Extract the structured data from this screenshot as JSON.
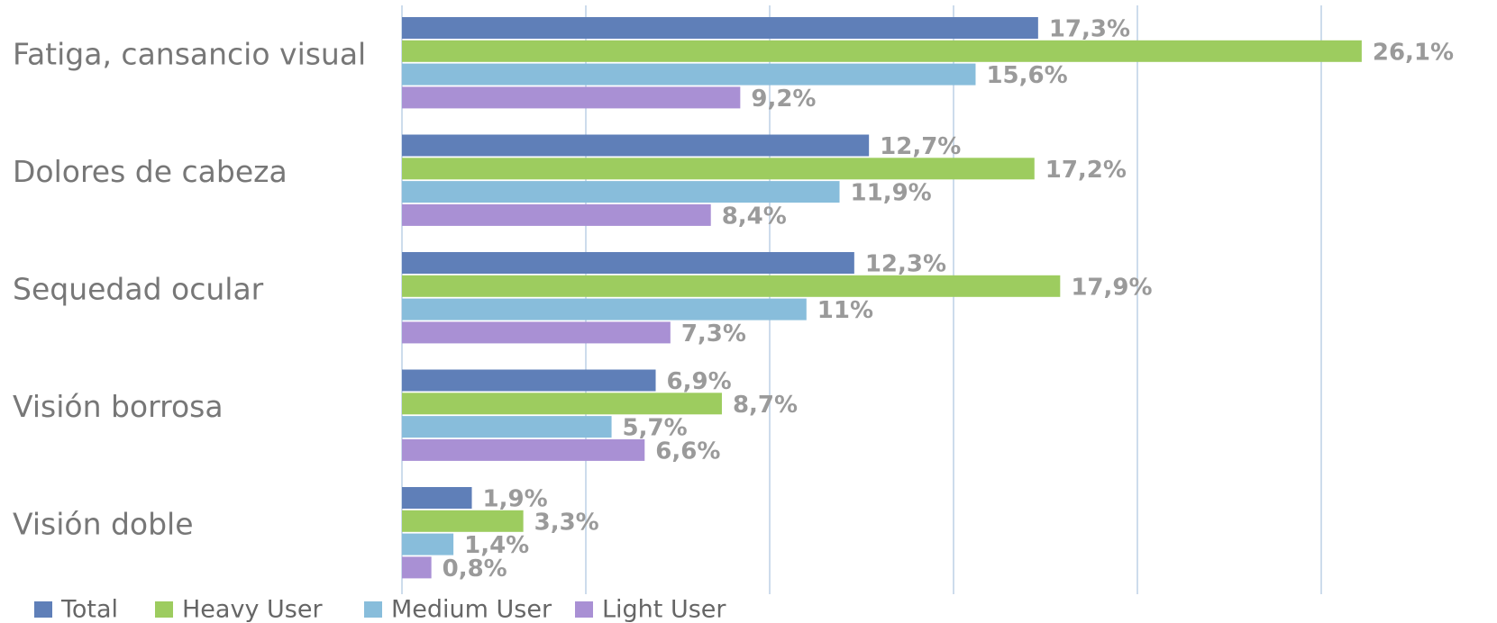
{
  "chart_data": {
    "type": "bar",
    "orientation": "horizontal",
    "categories": [
      "Fatiga, cansancio visual",
      "Dolores de cabeza",
      "Sequedad ocular",
      "Visión borrosa",
      "Visión doble"
    ],
    "series": [
      {
        "name": "Total",
        "color": "#5f7fb8",
        "values": [
          17.3,
          12.7,
          12.3,
          6.9,
          1.9
        ],
        "value_labels": [
          "17,3%",
          "12,7%",
          "12,3%",
          "6,9%",
          "1,9%"
        ]
      },
      {
        "name": "Heavy User",
        "color": "#9dcc5f",
        "values": [
          26.1,
          17.2,
          17.9,
          8.7,
          3.3
        ],
        "value_labels": [
          "26,1%",
          "17,2%",
          "17,9%",
          "8,7%",
          "3,3%"
        ]
      },
      {
        "name": "Medium User",
        "color": "#88bddb",
        "values": [
          15.6,
          11.9,
          11,
          5.7,
          1.4
        ],
        "value_labels": [
          "15,6%",
          "11,9%",
          "11%",
          "5,7%",
          "1,4%"
        ]
      },
      {
        "name": "Light User",
        "color": "#a990d4",
        "values": [
          9.2,
          8.4,
          7.3,
          6.6,
          0.8
        ],
        "value_labels": [
          "9,2%",
          "8,4%",
          "7,3%",
          "6,6%",
          "0,8%"
        ]
      }
    ],
    "xlim": [
      0,
      30
    ],
    "xticks": [
      0,
      5,
      10,
      15,
      20,
      25
    ],
    "grid": true,
    "legend": "bottom"
  }
}
